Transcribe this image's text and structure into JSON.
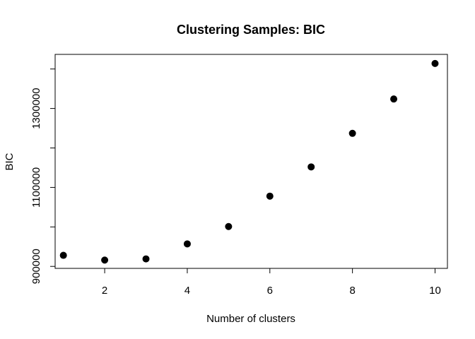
{
  "chart_data": {
    "type": "scatter",
    "title": "Clustering Samples: BIC",
    "xlabel": "Number of clusters",
    "ylabel": "BIC",
    "x": [
      1,
      2,
      3,
      4,
      5,
      6,
      7,
      8,
      9,
      10
    ],
    "y": [
      928000,
      916000,
      919000,
      957000,
      1001000,
      1078000,
      1152000,
      1237000,
      1324000,
      1414000
    ],
    "xlim": [
      0.8,
      10.3
    ],
    "ylim": [
      895000,
      1437000
    ],
    "xticks": [
      2,
      4,
      6,
      8,
      10
    ],
    "xtick_labels": [
      "2",
      "4",
      "6",
      "8",
      "10"
    ],
    "yticks": [
      900000,
      1100000,
      1300000
    ],
    "ytick_labels": [
      "900000",
      "1100000",
      "1300000"
    ],
    "yminor_ticks": [
      1000000,
      1200000,
      1400000
    ],
    "grid": false,
    "marker_color": "#000000"
  }
}
